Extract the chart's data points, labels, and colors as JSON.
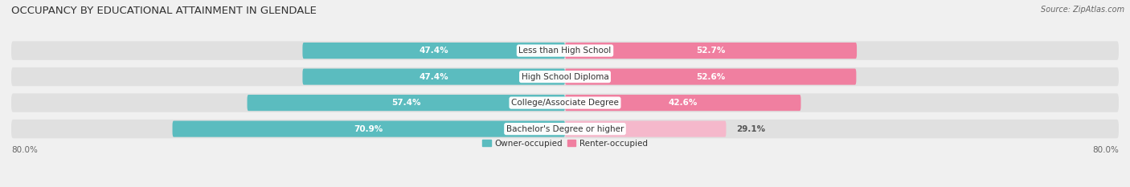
{
  "title": "OCCUPANCY BY EDUCATIONAL ATTAINMENT IN GLENDALE",
  "source": "Source: ZipAtlas.com",
  "categories": [
    "Less than High School",
    "High School Diploma",
    "College/Associate Degree",
    "Bachelor's Degree or higher"
  ],
  "owner_values": [
    47.4,
    47.4,
    57.4,
    70.9
  ],
  "renter_values": [
    52.7,
    52.6,
    42.6,
    29.1
  ],
  "owner_color": "#5bbcbf",
  "renter_colors": [
    "#f07fa0",
    "#f07fa0",
    "#f07fa0",
    "#f5b8cb"
  ],
  "owner_label": "Owner-occupied",
  "renter_label": "Renter-occupied",
  "total": 100.0,
  "xlim": 80.0,
  "x_left_label": "80.0%",
  "x_right_label": "80.0%",
  "title_fontsize": 9.5,
  "label_fontsize": 7.5,
  "tick_fontsize": 7.5,
  "source_fontsize": 7,
  "background_color": "#f0f0f0",
  "bar_bg_color": "#e0e0e0",
  "bar_height": 0.62,
  "bar_gap": 0.15,
  "n_bars": 4
}
